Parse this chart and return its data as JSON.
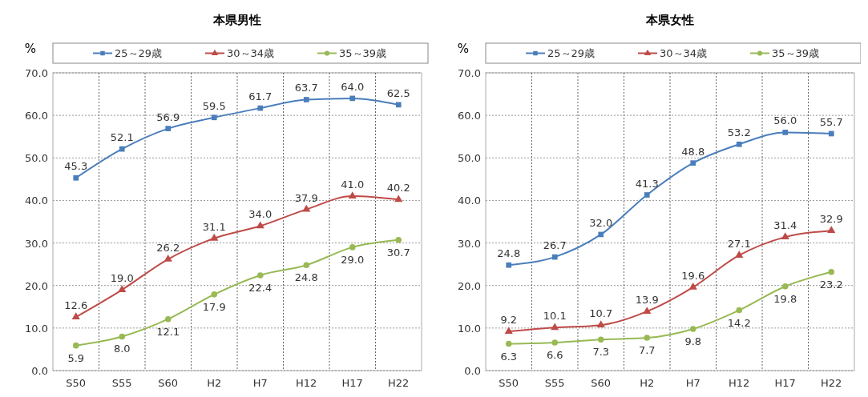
{
  "chart_data": [
    {
      "type": "line",
      "title": "本県男性",
      "ylabel": "%",
      "categories": [
        "S50",
        "S55",
        "S60",
        "H2",
        "H7",
        "H12",
        "H17",
        "H22"
      ],
      "ylim": [
        0,
        70
      ],
      "yticks": [
        {
          "value": 0,
          "label": "0.0"
        },
        {
          "value": 10,
          "label": "10.0"
        },
        {
          "value": 20,
          "label": "20.0"
        },
        {
          "value": 30,
          "label": "30.0"
        },
        {
          "value": 40,
          "label": "40.0"
        },
        {
          "value": 50,
          "label": "50.0"
        },
        {
          "value": 60,
          "label": "60.0"
        },
        {
          "value": 70,
          "label": "70.0"
        }
      ],
      "grid": true,
      "legend": "top",
      "series": [
        {
          "name": "25～29歳",
          "color": "#4a7ebb",
          "marker": "square",
          "values": [
            45.3,
            52.1,
            56.9,
            59.5,
            61.7,
            63.7,
            64.0,
            62.5
          ],
          "value_labels": [
            "45.3",
            "52.1",
            "56.9",
            "59.5",
            "61.7",
            "63.7",
            "64.0",
            "62.5"
          ]
        },
        {
          "name": "30～34歳",
          "color": "#be4b48",
          "marker": "triangle",
          "values": [
            12.6,
            19.0,
            26.2,
            31.1,
            34.0,
            37.9,
            41.0,
            40.2
          ],
          "value_labels": [
            "12.6",
            "19.0",
            "26.2",
            "31.1",
            "34.0",
            "37.9",
            "41.0",
            "40.2"
          ]
        },
        {
          "name": "35～39歳",
          "color": "#98b954",
          "marker": "circle",
          "values": [
            5.9,
            8.0,
            12.1,
            17.9,
            22.4,
            24.8,
            29.0,
            30.7
          ],
          "value_labels": [
            "5.9",
            "8.0",
            "12.1",
            "17.9",
            "22.4",
            "24.8",
            "29.0",
            "30.7"
          ]
        }
      ]
    },
    {
      "type": "line",
      "title": "本県女性",
      "ylabel": "%",
      "categories": [
        "S50",
        "S55",
        "S60",
        "H2",
        "H7",
        "H12",
        "H17",
        "H22"
      ],
      "ylim": [
        0,
        70
      ],
      "yticks": [
        {
          "value": 0,
          "label": "0.0"
        },
        {
          "value": 10,
          "label": "10.0"
        },
        {
          "value": 20,
          "label": "20.0"
        },
        {
          "value": 30,
          "label": "30.0"
        },
        {
          "value": 40,
          "label": "40.0"
        },
        {
          "value": 50,
          "label": "50.0"
        },
        {
          "value": 60,
          "label": "60.0"
        },
        {
          "value": 70,
          "label": "70.0"
        }
      ],
      "grid": true,
      "legend": "top",
      "series": [
        {
          "name": "25～29歳",
          "color": "#4a7ebb",
          "marker": "square",
          "values": [
            24.8,
            26.7,
            32.0,
            41.3,
            48.8,
            53.2,
            56.0,
            55.7
          ],
          "value_labels": [
            "24.8",
            "26.7",
            "32.0",
            "41.3",
            "48.8",
            "53.2",
            "56.0",
            "55.7"
          ]
        },
        {
          "name": "30～34歳",
          "color": "#be4b48",
          "marker": "triangle",
          "values": [
            9.2,
            10.1,
            10.7,
            13.9,
            19.6,
            27.1,
            31.4,
            32.9
          ],
          "value_labels": [
            "9.2",
            "10.1",
            "10.7",
            "13.9",
            "19.6",
            "27.1",
            "31.4",
            "32.9"
          ]
        },
        {
          "name": "35～39歳",
          "color": "#98b954",
          "marker": "circle",
          "values": [
            6.3,
            6.6,
            7.3,
            7.7,
            9.8,
            14.2,
            19.8,
            23.2
          ],
          "value_labels": [
            "6.3",
            "6.6",
            "7.3",
            "7.7",
            "9.8",
            "14.2",
            "19.8",
            "23.2"
          ]
        }
      ]
    }
  ]
}
